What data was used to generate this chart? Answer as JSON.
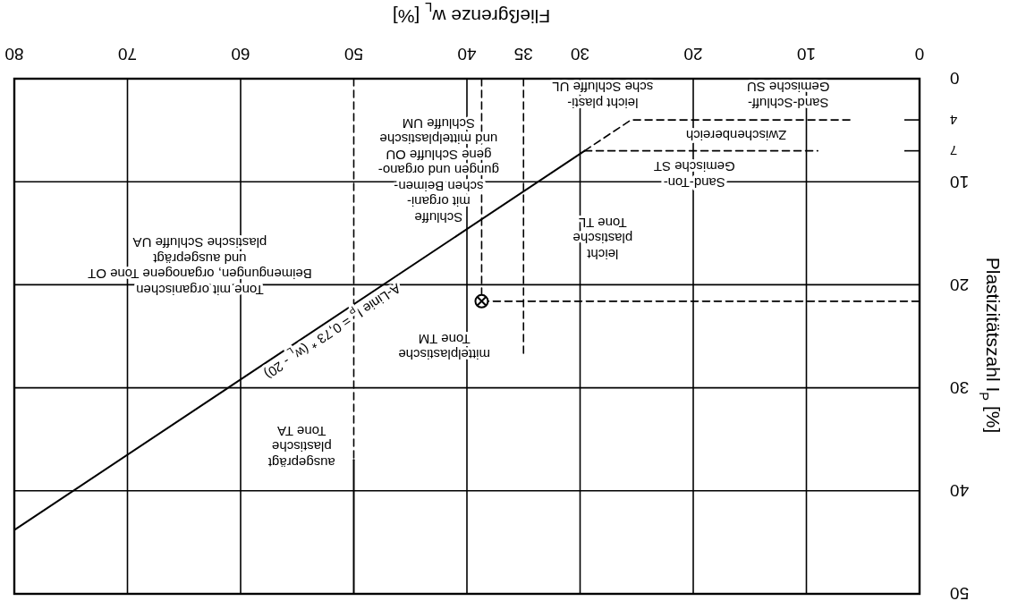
{
  "chart_data": {
    "type": "line",
    "xlabel": "Fließgrenze w$_{L}$ [%]",
    "ylabel": "Plastizitätszahl I$_{P}$ [%]",
    "xlim": [
      80,
      0
    ],
    "xticks": [
      0,
      10,
      20,
      30,
      {
        "value": 35,
        "label": "35"
      },
      40,
      50,
      60,
      70,
      80
    ],
    "ylim": [
      50,
      0
    ],
    "yticks": [
      0,
      {
        "value": 4,
        "label": "4"
      },
      {
        "value": 7,
        "label": "7"
      },
      10,
      20,
      30,
      40,
      50
    ],
    "grid": true,
    "series": [
      {
        "color": "#000000",
        "line_style": "solid",
        "x": [
          29.6,
          80
        ],
        "values": [
          7,
          43.8
        ]
      },
      {
        "color": "#000000",
        "line_style": "dashed",
        "x": [
          29.6,
          25.5,
          6
        ],
        "values": [
          7,
          4,
          4
        ]
      },
      {
        "color": "#000000",
        "line_style": "dashed",
        "x": [
          29.6,
          9
        ],
        "values": [
          7,
          7
        ]
      },
      {
        "color": "#000000",
        "line_style": "dashed",
        "x": [
          35,
          35
        ],
        "values": [
          0,
          27
        ]
      },
      {
        "color": "#000000",
        "line_style": "dashed",
        "x": [
          50,
          50
        ],
        "values": [
          0,
          37
        ]
      },
      {
        "color": "#000000",
        "line_style": "solid",
        "x": [
          50,
          50
        ],
        "values": [
          37,
          50
        ]
      },
      {
        "color": "#000000",
        "line_style": "dashed",
        "x": [
          38.7,
          38.7
        ],
        "values": [
          0,
          21.6
        ]
      },
      {
        "color": "#000000",
        "line_style": "dashed",
        "x": [
          38.7,
          0
        ],
        "values": [
          21.6,
          21.6
        ]
      },
      {
        "type": "scatter",
        "color": "#000000",
        "marker": "circle",
        "x": [
          38.7
        ],
        "values": [
          21.6
        ]
      }
    ],
    "annotations": [
      "Sand-Schluff-\nGemische SU",
      "leicht plasti-\nsche Schluffe UL",
      "Zwischenbereich",
      "Sand-Ton-\nGemische ST",
      "leicht\nplastische\nTone TL",
      "Schluffe\nmit organi-\nschen Beimen-\ngungen und organo-\ngene Schluffe OU\nund mittelplastische\nSchluffe UM",
      "mittelplastische\nTone TM",
      "Tone mit organischen\nBeimengungen, organogene Tone OT\nund ausgeprägt\nplastische Schluffe UA",
      "ausgeprägt\nplastische\nTone TA",
      "A-Linie I$_{P}$ = 0,73 * (w$_{L}$ - 20)"
    ]
  }
}
